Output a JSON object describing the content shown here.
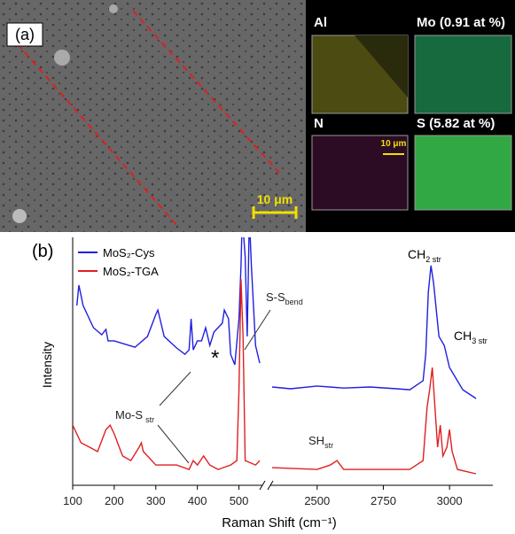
{
  "panel_a": {
    "label": "(a)",
    "scale_bar": "10 μm",
    "maps": [
      {
        "label": "Al"
      },
      {
        "label": "Mo (0.91 at %)"
      },
      {
        "label": "N"
      },
      {
        "label": "S (5.82 at %)"
      }
    ],
    "map_scale_bar": "10 μm"
  },
  "chart_data": {
    "type": "line",
    "label": "(b)",
    "x_label": "Raman Shift (cm⁻¹)",
    "y_label": "Intensity",
    "xlim": [
      [
        100,
        550
      ],
      [
        2330,
        3110
      ]
    ],
    "ylim": [
      0,
      100
    ],
    "xticks": [
      [
        100,
        200,
        300,
        400,
        500
      ],
      [
        2500,
        2750,
        3000
      ]
    ],
    "broken_axis": true,
    "legend": "upper left",
    "series": [
      {
        "name": "MoS₂-Cys",
        "color": "#1f1fe0",
        "x": [
          110,
          115,
          125,
          150,
          170,
          180,
          185,
          200,
          250,
          280,
          300,
          305,
          320,
          350,
          370,
          380,
          385,
          390,
          400,
          410,
          420,
          430,
          440,
          460,
          465,
          475,
          480,
          490,
          500,
          505,
          508,
          515,
          520,
          525,
          530,
          540,
          550,
          null,
          2330,
          2400,
          2500,
          2600,
          2700,
          2800,
          2850,
          2900,
          2910,
          2920,
          2930,
          2940,
          2960,
          2980,
          3000,
          3050,
          3100
        ],
        "values": [
          73.6,
          81.9,
          73.6,
          64.5,
          61.6,
          63.8,
          59.1,
          59.1,
          56.5,
          60.9,
          69.9,
          71.7,
          60.9,
          56.2,
          53.6,
          55.4,
          68.1,
          55.4,
          59.1,
          59.1,
          64.5,
          57.2,
          62.7,
          66.3,
          71.7,
          68.1,
          53.6,
          49.3,
          68.1,
          89.9,
          110,
          93.5,
          60.9,
          110,
          89.9,
          57.2,
          50.0,
          null,
          40.2,
          39.5,
          40.6,
          39.8,
          40.2,
          39.5,
          39.1,
          42.8,
          53.6,
          78.9,
          89.9,
          82.6,
          60.9,
          57.2,
          48.2,
          39.1,
          35.5
        ]
      },
      {
        "name": "MoS₂-TGA",
        "color": "#e01f1f",
        "x": [
          100,
          110,
          120,
          140,
          160,
          180,
          190,
          200,
          220,
          240,
          260,
          265,
          270,
          300,
          350,
          380,
          390,
          400,
          415,
          430,
          450,
          480,
          495,
          500,
          505,
          510,
          515,
          540,
          550,
          null,
          2330,
          2500,
          2550,
          2575,
          2600,
          2850,
          2900,
          2915,
          2925,
          2935,
          2945,
          2955,
          2965,
          2975,
          2990,
          3000,
          3010,
          3030,
          3100
        ],
        "values": [
          24.6,
          21.0,
          17.4,
          15.6,
          13.8,
          22.8,
          24.6,
          21.0,
          12.0,
          10.1,
          15.6,
          17.4,
          13.8,
          8.3,
          8.3,
          6.5,
          10.1,
          8.3,
          12.0,
          8.3,
          6.5,
          8.3,
          10.1,
          39.1,
          84.4,
          60.9,
          10.1,
          8.3,
          10.1,
          null,
          7.2,
          6.5,
          8.3,
          10.1,
          6.5,
          6.5,
          10.1,
          31.9,
          39.1,
          48.2,
          31.9,
          15.6,
          24.6,
          12.0,
          15.6,
          22.8,
          13.8,
          6.5,
          4.7
        ]
      }
    ],
    "annotations": [
      {
        "text": "Mo-S",
        "sub": "str"
      },
      {
        "text": "S-S",
        "sub": "bend"
      },
      {
        "text": "*"
      },
      {
        "text": "CH",
        "sub": "2 str"
      },
      {
        "text": "CH",
        "sub": "3 str"
      },
      {
        "text": "SH",
        "sub": "str"
      }
    ]
  }
}
